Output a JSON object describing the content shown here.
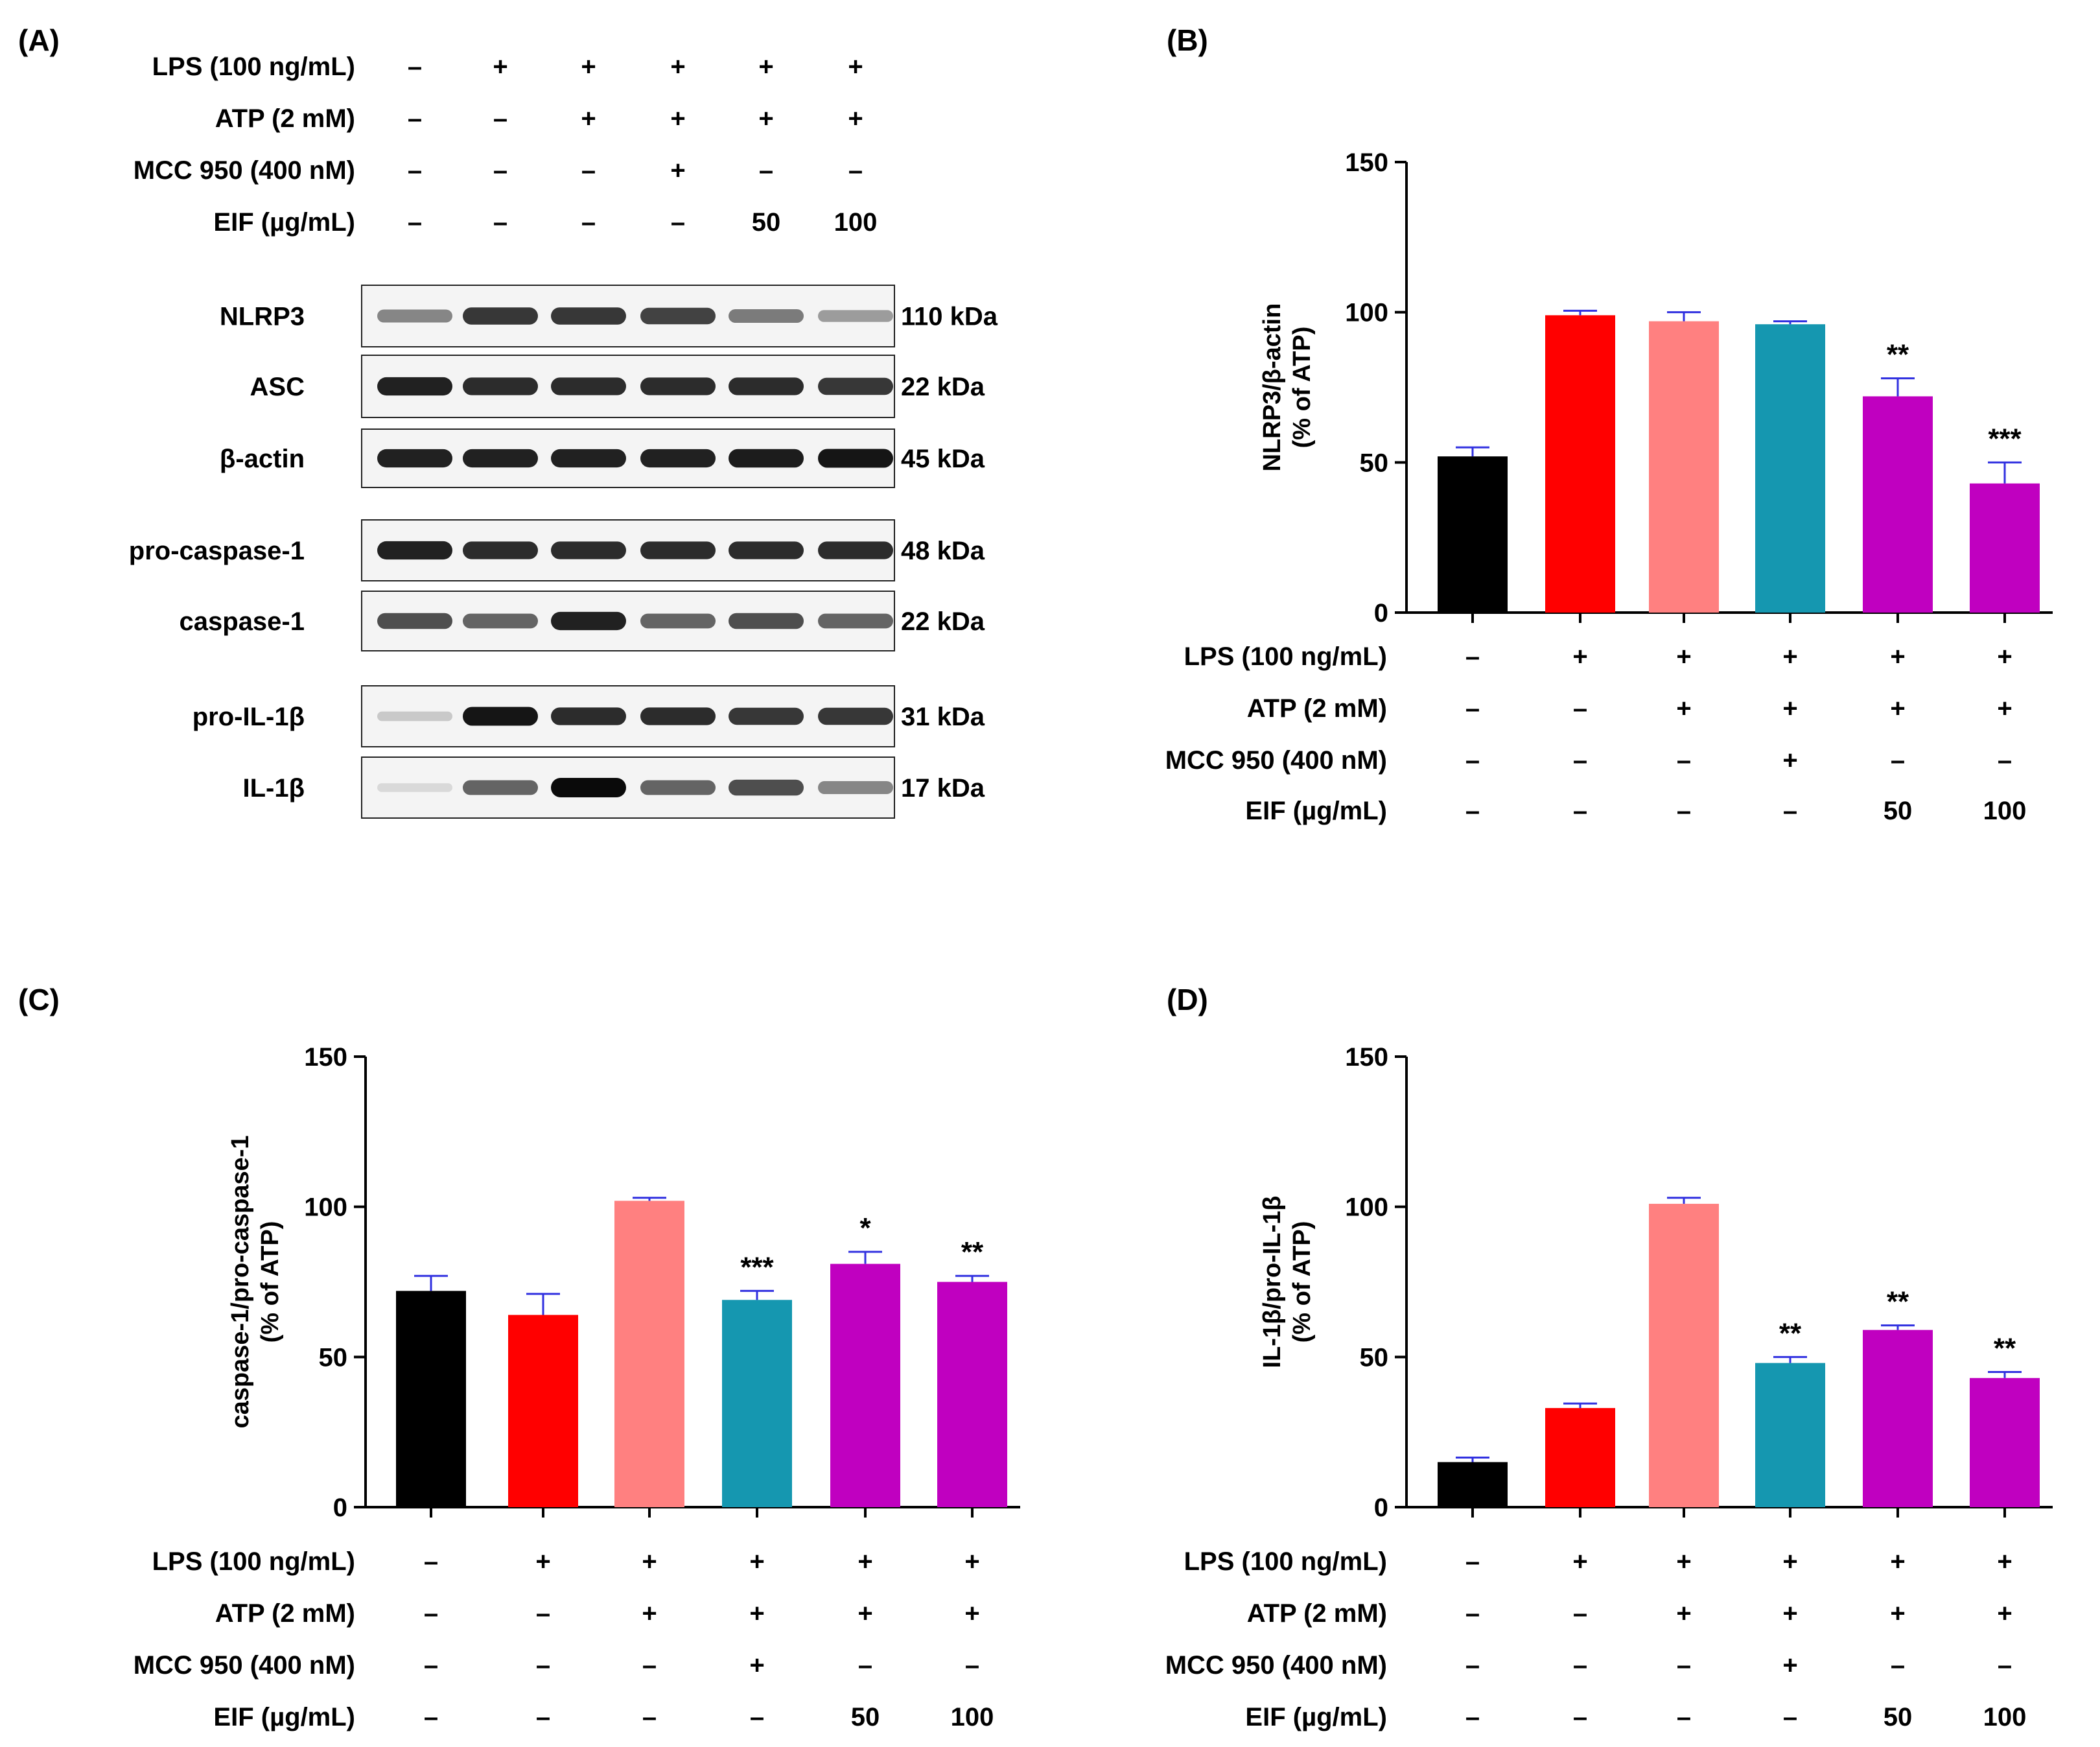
{
  "colors": {
    "control": "#000000",
    "lps": "#ff0000",
    "atp": "#ff8080",
    "mcc950": "#1597b0",
    "eif": "#c000c0",
    "error_bar": "#3030e0",
    "axis": "#000000"
  },
  "treatments": {
    "row_labels": [
      "LPS  (100 ng/mL)",
      "ATP (2 mM)",
      "MCC 950 (400 nM)",
      "EIF (µg/mL)"
    ],
    "rows": [
      [
        "–",
        "+",
        "+",
        "+",
        "+",
        "+"
      ],
      [
        "–",
        "–",
        "+",
        "+",
        "+",
        "+"
      ],
      [
        "–",
        "–",
        "–",
        "+",
        "–",
        "–"
      ],
      [
        "–",
        "–",
        "–",
        "–",
        "50",
        "100"
      ]
    ]
  },
  "panel_a": {
    "label": "(A)",
    "blots": [
      {
        "protein": "NLRP3",
        "size": "110 kDa",
        "intensity": [
          0.45,
          0.8,
          0.8,
          0.75,
          0.5,
          0.35
        ]
      },
      {
        "protein": "ASC",
        "size": "22 kDa",
        "intensity": [
          0.9,
          0.85,
          0.85,
          0.85,
          0.85,
          0.8
        ]
      },
      {
        "protein": "β-actin",
        "size": "45 kDa",
        "intensity": [
          0.9,
          0.9,
          0.9,
          0.9,
          0.92,
          0.95
        ]
      },
      {
        "protein": "pro-caspase-1",
        "size": "48 kDa",
        "intensity": [
          0.9,
          0.85,
          0.85,
          0.85,
          0.85,
          0.85
        ]
      },
      {
        "protein": "caspase-1",
        "size": "22 kDa",
        "intensity": [
          0.7,
          0.6,
          0.9,
          0.6,
          0.7,
          0.6
        ]
      },
      {
        "protein": "pro-IL-1β",
        "size": "31 kDa",
        "intensity": [
          0.15,
          0.95,
          0.85,
          0.85,
          0.8,
          0.8
        ]
      },
      {
        "protein": "IL-1β",
        "size": "17 kDa",
        "intensity": [
          0.08,
          0.6,
          1.0,
          0.6,
          0.7,
          0.45
        ]
      }
    ]
  },
  "chart_data": [
    {
      "panel": "(B)",
      "type": "bar",
      "ylabel_line1": "NLRP3/β-actin",
      "ylabel_line2": "(% of ATP)",
      "ylim": [
        0,
        150
      ],
      "yticks": [
        0,
        50,
        100,
        150
      ],
      "values": [
        52,
        99,
        97,
        96,
        72,
        43
      ],
      "errors": [
        3,
        1.5,
        3,
        1,
        6,
        7
      ],
      "significance": [
        "",
        "",
        "",
        "",
        "**",
        "***"
      ]
    },
    {
      "panel": "(C)",
      "type": "bar",
      "ylabel_line1": "caspase-1/pro-caspase-1",
      "ylabel_line2": "(% of ATP)",
      "ylim": [
        0,
        150
      ],
      "yticks": [
        0,
        50,
        100,
        150
      ],
      "values": [
        72,
        64,
        102,
        69,
        81,
        75
      ],
      "errors": [
        5,
        7,
        1,
        3,
        4,
        2
      ],
      "significance": [
        "",
        "",
        "",
        "***",
        "*",
        "**"
      ]
    },
    {
      "panel": "(D)",
      "type": "bar",
      "ylabel_line1": "IL-1β/pro-IL-1β",
      "ylabel_line2": "(% of ATP)",
      "ylim": [
        0,
        150
      ],
      "yticks": [
        0,
        50,
        100,
        150
      ],
      "values": [
        15,
        33,
        101,
        48,
        59,
        43
      ],
      "errors": [
        1.5,
        1.5,
        2,
        2,
        1.5,
        2
      ],
      "significance": [
        "",
        "",
        "",
        "**",
        "**",
        "**"
      ]
    }
  ]
}
